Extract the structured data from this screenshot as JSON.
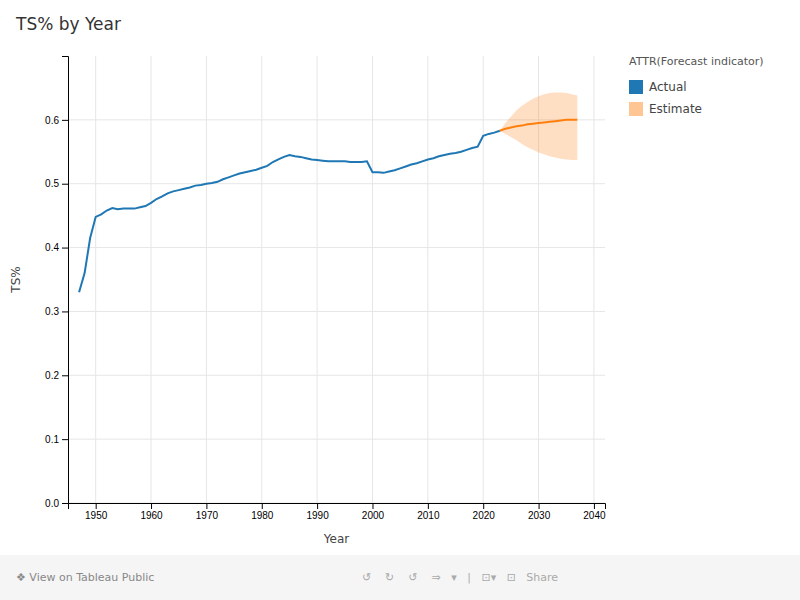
{
  "chart_data": {
    "type": "line",
    "title": "TS% by Year",
    "x_label": "Year",
    "y_label": "TS%",
    "legend_title": "ATTR(Forecast indicator)",
    "legend": "right",
    "grid": true,
    "xlim": [
      1945,
      2042
    ],
    "xticks": [
      1950,
      1960,
      1970,
      1980,
      1990,
      2000,
      2010,
      2020,
      2030,
      2040
    ],
    "ylim": [
      0.0,
      0.7
    ],
    "yticks": [
      {
        "value": 0.0,
        "label": "0.0"
      },
      0.1,
      0.2,
      0.3,
      0.4,
      0.5,
      0.6
    ],
    "series": [
      {
        "name": "Actual",
        "x": [
          1947,
          1948,
          1949,
          1950,
          1951,
          1952,
          1953,
          1954,
          1955,
          1956,
          1957,
          1958,
          1959,
          1960,
          1961,
          1962,
          1963,
          1964,
          1965,
          1966,
          1967,
          1968,
          1969,
          1970,
          1971,
          1972,
          1973,
          1974,
          1975,
          1976,
          1977,
          1978,
          1979,
          1980,
          1981,
          1982,
          1983,
          1984,
          1985,
          1986,
          1987,
          1988,
          1989,
          1990,
          1991,
          1992,
          1993,
          1994,
          1995,
          1996,
          1997,
          1998,
          1999,
          2000,
          2001,
          2002,
          2003,
          2004,
          2005,
          2006,
          2007,
          2008,
          2009,
          2010,
          2011,
          2012,
          2013,
          2014,
          2015,
          2016,
          2017,
          2018,
          2019,
          2020,
          2021,
          2022,
          2023
        ],
        "values": [
          0.33,
          0.36,
          0.415,
          0.448,
          0.452,
          0.458,
          0.462,
          0.46,
          0.461,
          0.461,
          0.461,
          0.463,
          0.465,
          0.47,
          0.476,
          0.48,
          0.485,
          0.488,
          0.49,
          0.492,
          0.494,
          0.497,
          0.498,
          0.5,
          0.501,
          0.503,
          0.507,
          0.51,
          0.513,
          0.516,
          0.518,
          0.52,
          0.522,
          0.525,
          0.528,
          0.534,
          0.538,
          0.542,
          0.545,
          0.543,
          0.542,
          0.54,
          0.538,
          0.537,
          0.536,
          0.535,
          0.535,
          0.535,
          0.535,
          0.534,
          0.534,
          0.534,
          0.535,
          0.518,
          0.518,
          0.517,
          0.519,
          0.521,
          0.524,
          0.527,
          0.53,
          0.532,
          0.535,
          0.538,
          0.54,
          0.543,
          0.545,
          0.547,
          0.548,
          0.55,
          0.553,
          0.556,
          0.558,
          0.575,
          0.578,
          0.58,
          0.583
        ]
      },
      {
        "name": "Estimate",
        "x": [
          2023,
          2024,
          2025,
          2026,
          2027,
          2028,
          2029,
          2030,
          2031,
          2032,
          2033,
          2034,
          2035,
          2036,
          2037
        ],
        "values": [
          0.583,
          0.586,
          0.588,
          0.59,
          0.591,
          0.593,
          0.594,
          0.595,
          0.596,
          0.597,
          0.598,
          0.599,
          0.6,
          0.6,
          0.6
        ],
        "upper": [
          0.583,
          0.595,
          0.605,
          0.615,
          0.622,
          0.628,
          0.633,
          0.637,
          0.64,
          0.642,
          0.643,
          0.643,
          0.642,
          0.64,
          0.638
        ],
        "lower": [
          0.583,
          0.578,
          0.573,
          0.568,
          0.562,
          0.557,
          0.553,
          0.549,
          0.546,
          0.543,
          0.541,
          0.539,
          0.538,
          0.537,
          0.537
        ]
      }
    ],
    "annotations": [
      "❖ View on Tableau Public",
      "↺    ↻    ↺    ⇒   ▾   |   ⊡▾   ⊡   Share"
    ]
  }
}
